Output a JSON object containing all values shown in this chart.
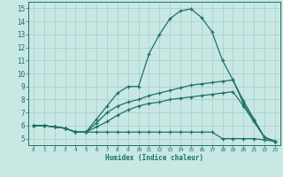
{
  "xlabel": "Humidex (Indice chaleur)",
  "xlim": [
    -0.5,
    23.5
  ],
  "ylim": [
    4.5,
    15.5
  ],
  "yticks": [
    5,
    6,
    7,
    8,
    9,
    10,
    11,
    12,
    13,
    14,
    15
  ],
  "xticks": [
    0,
    1,
    2,
    3,
    4,
    5,
    6,
    7,
    8,
    9,
    10,
    11,
    12,
    13,
    14,
    15,
    16,
    17,
    18,
    19,
    20,
    21,
    22,
    23
  ],
  "bg_color": "#c8e8e4",
  "line_color": "#1e7068",
  "grid_color": "#a8ccc8",
  "lines": [
    {
      "x": [
        0,
        1,
        2,
        3,
        4,
        5,
        6,
        7,
        8,
        9,
        10,
        11,
        12,
        13,
        14,
        15,
        16,
        17,
        18,
        19,
        20,
        21,
        22,
        23
      ],
      "y": [
        6.0,
        6.0,
        5.9,
        5.8,
        5.5,
        5.5,
        6.5,
        7.5,
        8.5,
        9.0,
        9.0,
        11.5,
        13.0,
        14.2,
        14.8,
        14.95,
        14.3,
        13.2,
        11.0,
        9.5,
        7.9,
        6.5,
        5.1,
        4.8
      ]
    },
    {
      "x": [
        0,
        1,
        2,
        3,
        4,
        5,
        6,
        7,
        8,
        9,
        10,
        11,
        12,
        13,
        14,
        15,
        16,
        17,
        18,
        19,
        20,
        21,
        22,
        23
      ],
      "y": [
        6.0,
        6.0,
        5.9,
        5.8,
        5.5,
        5.5,
        6.2,
        7.0,
        7.5,
        7.8,
        8.0,
        8.3,
        8.5,
        8.7,
        8.9,
        9.1,
        9.2,
        9.3,
        9.4,
        9.5,
        7.7,
        6.4,
        5.1,
        4.8
      ]
    },
    {
      "x": [
        0,
        1,
        2,
        3,
        4,
        5,
        6,
        7,
        8,
        9,
        10,
        11,
        12,
        13,
        14,
        15,
        16,
        17,
        18,
        19,
        20,
        21,
        22,
        23
      ],
      "y": [
        6.0,
        6.0,
        5.9,
        5.8,
        5.5,
        5.5,
        5.9,
        6.3,
        6.8,
        7.2,
        7.5,
        7.7,
        7.8,
        8.0,
        8.1,
        8.2,
        8.3,
        8.4,
        8.5,
        8.6,
        7.5,
        6.3,
        5.1,
        4.8
      ]
    },
    {
      "x": [
        0,
        1,
        2,
        3,
        4,
        5,
        6,
        7,
        8,
        9,
        10,
        11,
        12,
        13,
        14,
        15,
        16,
        17,
        18,
        19,
        20,
        21,
        22,
        23
      ],
      "y": [
        6.0,
        6.0,
        5.9,
        5.8,
        5.5,
        5.5,
        5.5,
        5.5,
        5.5,
        5.5,
        5.5,
        5.5,
        5.5,
        5.5,
        5.5,
        5.5,
        5.5,
        5.5,
        5.0,
        5.0,
        5.0,
        5.0,
        4.9,
        4.8
      ]
    }
  ]
}
